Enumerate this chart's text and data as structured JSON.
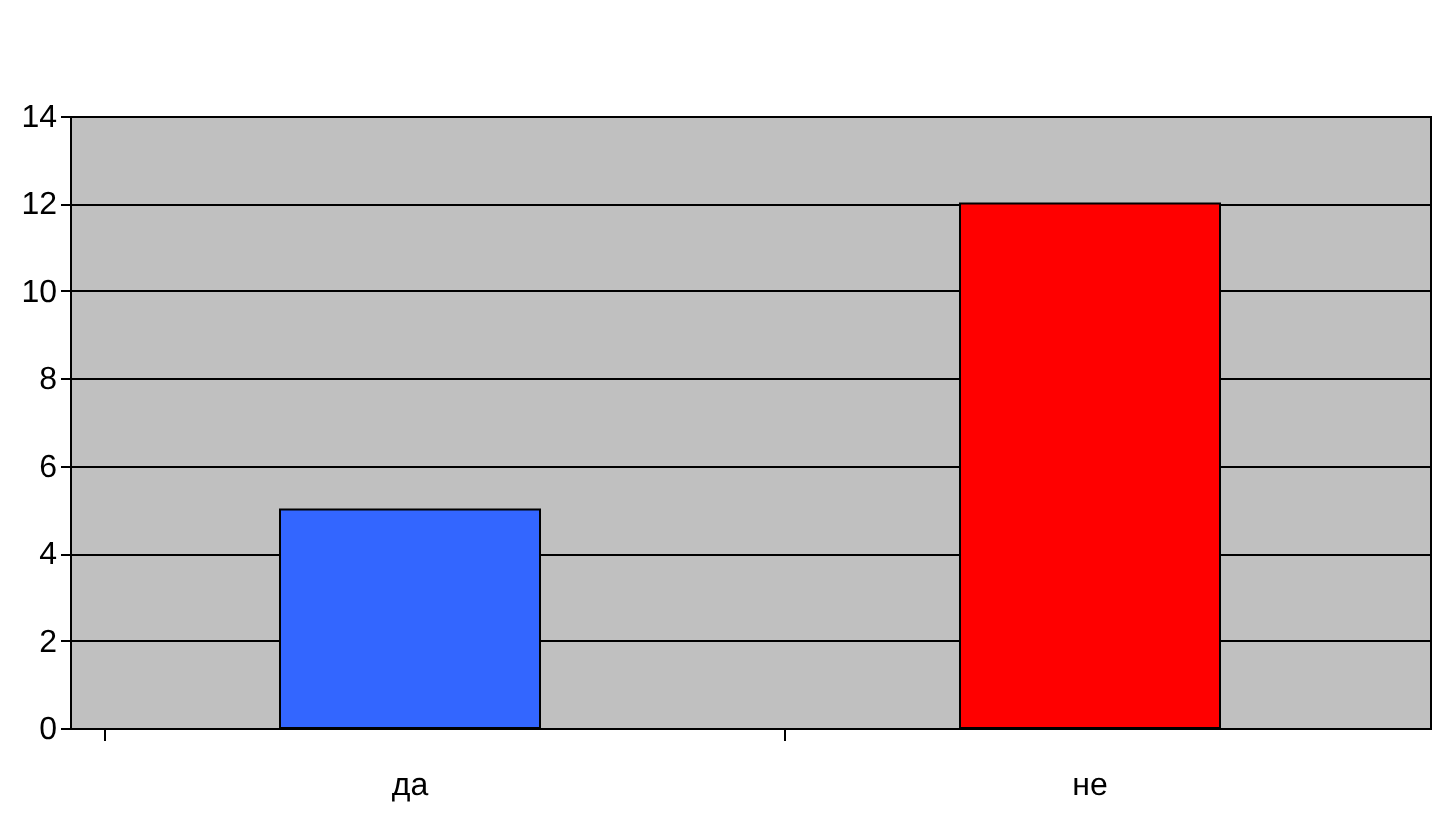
{
  "chart_data": {
    "type": "bar",
    "categories": [
      "да",
      "не"
    ],
    "colors": [
      "#3366ff",
      "#ff0000"
    ],
    "values": [
      5,
      12
    ],
    "ylim": [
      0,
      14
    ],
    "yticks": [
      0,
      2,
      4,
      6,
      8,
      10,
      12,
      14
    ],
    "grid": "y"
  }
}
